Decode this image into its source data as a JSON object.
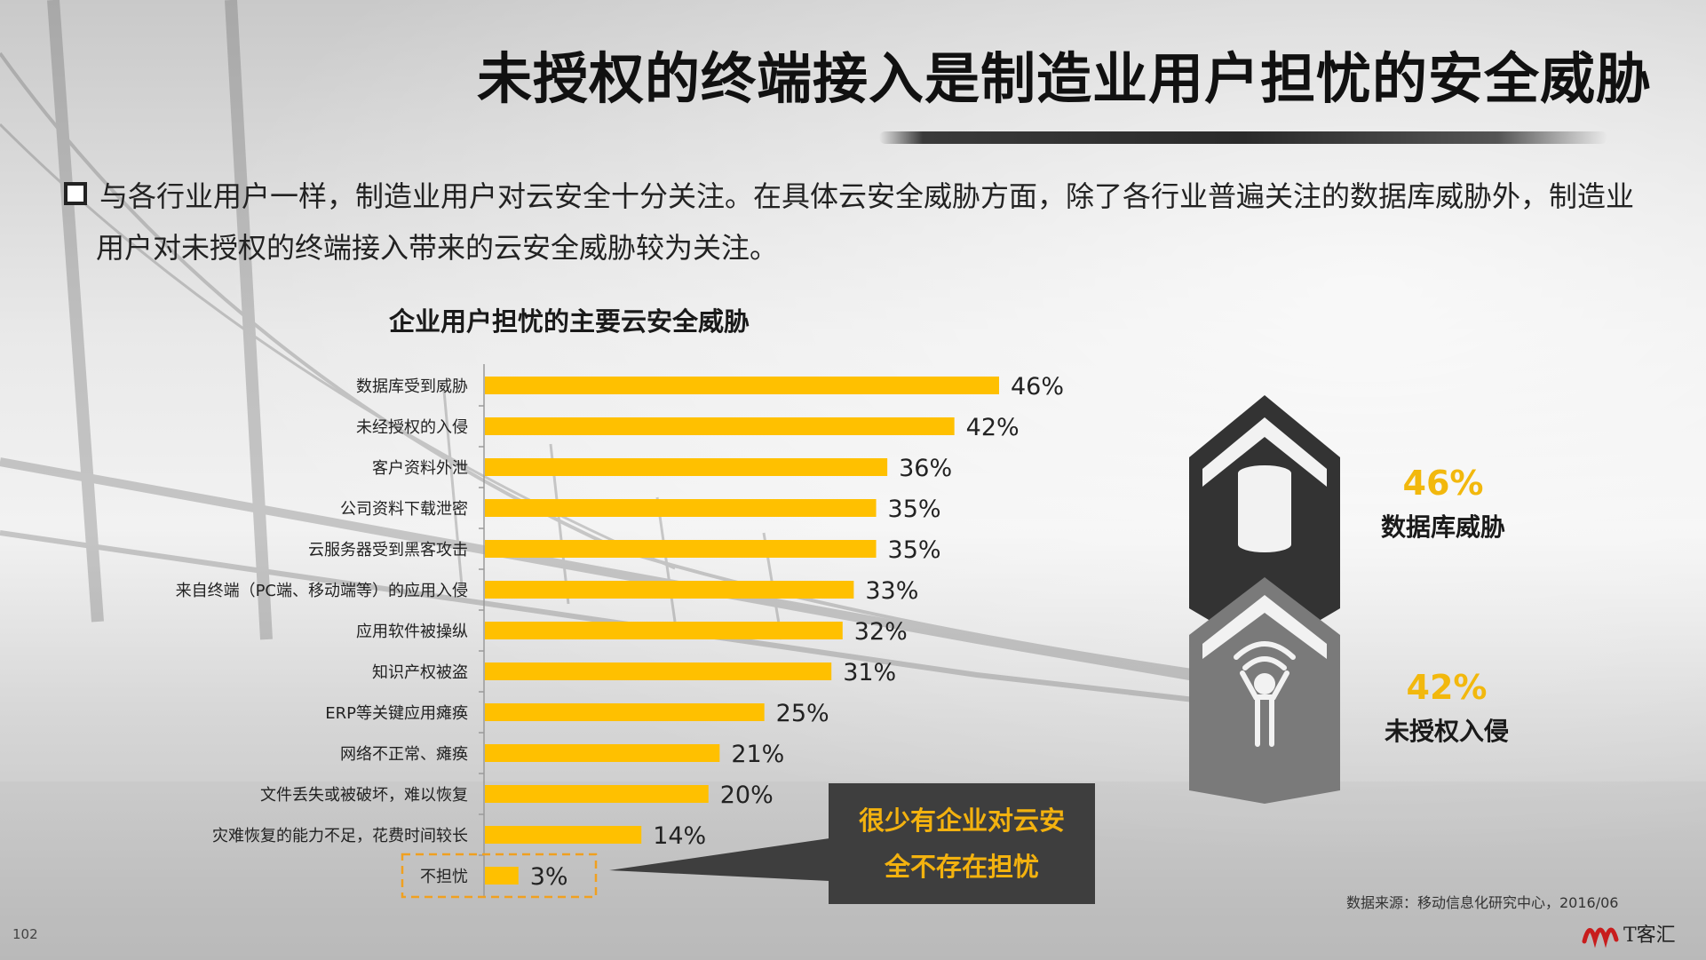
{
  "slide": {
    "title": "未授权的终端接入是制造业用户担忧的安全威胁",
    "intro_line1": "与各行业用户一样，制造业用户对云安全十分关注。在具体云安全威胁方面，除了各行业普遍关注的数据库威胁外，制造业",
    "intro_line2": "用户对未授权的终端接入带来的云安全威胁较为关注。",
    "callout_line1": "很少有企业对云安",
    "callout_line2": "全不存在担忧",
    "stat1_pct": "46%",
    "stat1_label": "数据库威胁",
    "stat2_pct": "42%",
    "stat2_label": "未授权入侵",
    "source": "数据来源：移动信息化研究中心，2016/06",
    "page_number": "102",
    "logo_text": "T客汇"
  },
  "colors": {
    "bar": "#FFC000",
    "stat_pct": "#F2B80D",
    "callout_bg": "#3E3E3E",
    "callout_text": "#F3B20F",
    "highlight_border": "#F0A020",
    "icon_dark": "#333333",
    "icon_gray": "#7A7A7A"
  },
  "chart_data": {
    "type": "bar",
    "orientation": "horizontal",
    "title": "企业用户担忧的主要云安全威胁",
    "categories": [
      "数据库受到威胁",
      "未经授权的入侵",
      "客户资料外泄",
      "公司资料下载泄密",
      "云服务器受到黑客攻击",
      "来自终端（PC端、移动端等）的应用入侵",
      "应用软件被操纵",
      "知识产权被盗",
      "ERP等关键应用瘫痪",
      "网络不正常、瘫痪",
      "文件丢失或被破坏，难以恢复",
      "灾难恢复的能力不足，花费时间较长",
      "不担忧"
    ],
    "values": [
      46,
      42,
      36,
      35,
      35,
      33,
      32,
      31,
      25,
      21,
      20,
      14,
      3
    ],
    "value_labels": [
      "46%",
      "42%",
      "36%",
      "35%",
      "35%",
      "33%",
      "32%",
      "31%",
      "25%",
      "21%",
      "20%",
      "14%",
      "3%"
    ],
    "unit": "%",
    "xlim": [
      0,
      100
    ],
    "highlighted_category": "不担忧"
  }
}
